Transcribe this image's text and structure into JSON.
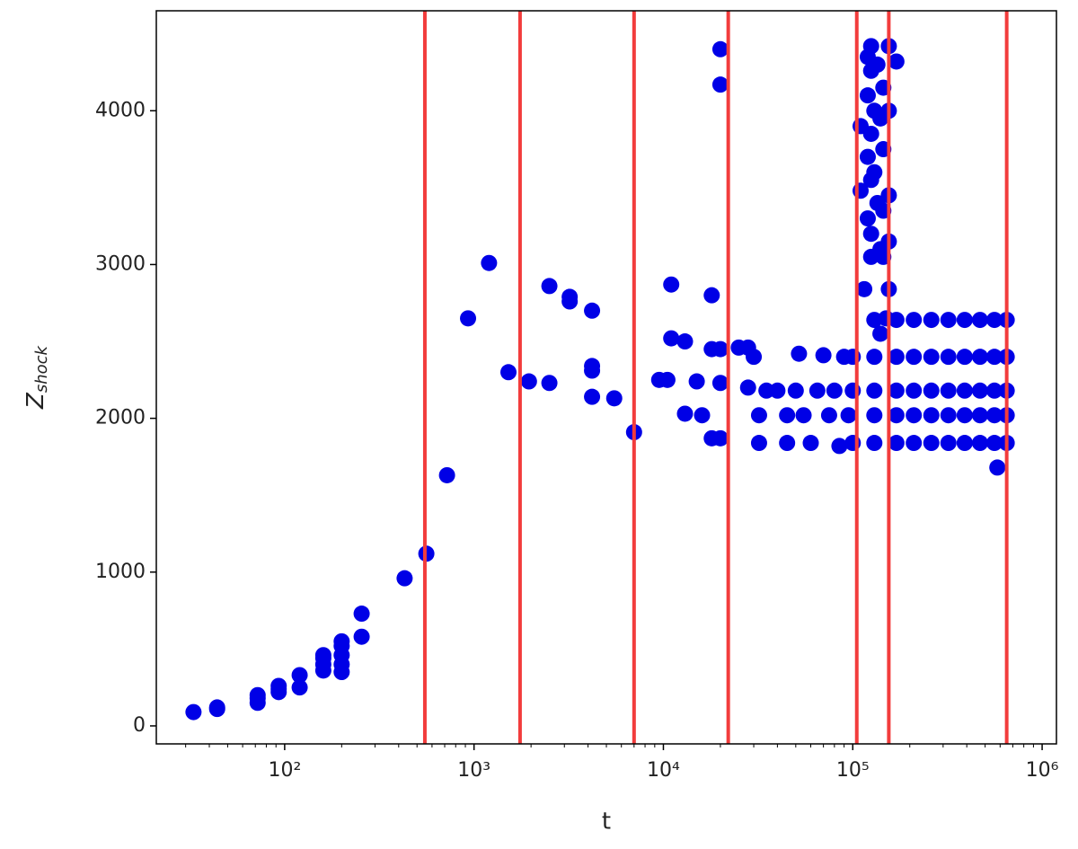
{
  "chart_data": {
    "type": "scatter",
    "xscale": "log",
    "xlabel": "t",
    "ylabel": {
      "main": "Z",
      "sub": "shock"
    },
    "xlim": [
      21,
      1190000
    ],
    "ylim": [
      -117,
      4650
    ],
    "xticks": [
      {
        "value": 100,
        "label": "10²"
      },
      {
        "value": 1000,
        "label": "10³"
      },
      {
        "value": 10000,
        "label": "10⁴"
      },
      {
        "value": 100000,
        "label": "10⁵"
      },
      {
        "value": 1000000,
        "label": "10⁶"
      }
    ],
    "xminorticks": [
      30,
      40,
      50,
      60,
      70,
      80,
      90,
      200,
      300,
      400,
      500,
      600,
      700,
      800,
      900,
      2000,
      3000,
      4000,
      5000,
      6000,
      7000,
      8000,
      9000,
      20000,
      30000,
      40000,
      50000,
      60000,
      70000,
      80000,
      90000,
      200000,
      300000,
      400000,
      500000,
      600000,
      700000,
      800000,
      900000
    ],
    "yticks": [
      0,
      1000,
      2000,
      3000,
      4000
    ],
    "vlines": {
      "color": "#f23c3c",
      "values": [
        550,
        1750,
        7000,
        22000,
        105000,
        155000,
        650000
      ]
    },
    "series": [
      {
        "color": "#0000e6",
        "x": [
          33,
          44,
          44,
          72,
          72,
          72,
          93,
          93,
          93,
          120,
          120,
          160,
          160,
          160,
          160,
          200,
          200,
          200,
          200,
          200,
          255,
          255,
          430,
          560,
          720,
          930,
          1200,
          1520,
          1950,
          2500,
          2500,
          3200,
          3200,
          4200,
          4200,
          4200,
          4200,
          5500,
          7000,
          9500,
          10500,
          11000,
          11000,
          13000,
          13000,
          15000,
          16000,
          18000,
          18000,
          18000,
          20000,
          20000,
          20000,
          20000,
          20000,
          25000,
          28000,
          30000,
          28000,
          32000,
          32000,
          35000,
          40000,
          45000,
          45000,
          50000,
          52000,
          55000,
          60000,
          65000,
          70000,
          75000,
          80000,
          85000,
          90000,
          95000,
          100000,
          100000,
          100000,
          110000,
          110000,
          115000,
          120000,
          120000,
          120000,
          120000,
          125000,
          125000,
          125000,
          125000,
          125000,
          125000,
          130000,
          130000,
          135000,
          135000,
          140000,
          140000,
          140000,
          145000,
          145000,
          145000,
          145000,
          150000,
          155000,
          155000,
          155000,
          155000,
          155000,
          170000,
          130000,
          130000,
          130000,
          130000,
          130000,
          170000,
          170000,
          170000,
          170000,
          170000,
          210000,
          210000,
          210000,
          210000,
          210000,
          260000,
          260000,
          260000,
          260000,
          260000,
          320000,
          320000,
          320000,
          320000,
          320000,
          390000,
          390000,
          390000,
          390000,
          390000,
          470000,
          470000,
          470000,
          470000,
          470000,
          560000,
          560000,
          560000,
          560000,
          560000,
          650000,
          650000,
          650000,
          650000,
          650000,
          580000
        ],
        "values": [
          90,
          110,
          120,
          150,
          200,
          180,
          220,
          260,
          240,
          250,
          330,
          360,
          400,
          440,
          460,
          350,
          400,
          460,
          520,
          550,
          580,
          730,
          960,
          1120,
          1630,
          2650,
          3010,
          2300,
          2240,
          2230,
          2860,
          2790,
          2760,
          2700,
          2140,
          2310,
          2340,
          2130,
          1910,
          2250,
          2250,
          2520,
          2870,
          2500,
          2030,
          2240,
          2020,
          2800,
          2450,
          1870,
          4400,
          4170,
          1870,
          2450,
          2230,
          2460,
          2460,
          2400,
          2200,
          2020,
          1840,
          2180,
          2180,
          2020,
          1840,
          2180,
          2420,
          2020,
          1840,
          2180,
          2410,
          2020,
          2180,
          1820,
          2400,
          2020,
          2180,
          2400,
          1840,
          3480,
          3900,
          2840,
          4350,
          4100,
          3700,
          3300,
          4420,
          4260,
          3850,
          3550,
          3200,
          3050,
          4000,
          3600,
          4300,
          3400,
          3950,
          3100,
          2550,
          4150,
          3750,
          3350,
          3050,
          2650,
          4420,
          4000,
          3450,
          3150,
          2840,
          4320,
          2640,
          2400,
          2180,
          2020,
          1840,
          2640,
          2400,
          2180,
          2020,
          1840,
          2640,
          2400,
          2180,
          2020,
          1840,
          2640,
          2400,
          2180,
          2020,
          1840,
          2640,
          2400,
          2180,
          2020,
          1840,
          2640,
          2400,
          2180,
          2020,
          1840,
          2640,
          2400,
          2180,
          2020,
          1840,
          2640,
          2400,
          2180,
          2020,
          1840,
          2640,
          2400,
          2180,
          2020,
          1840,
          1680
        ]
      }
    ]
  }
}
